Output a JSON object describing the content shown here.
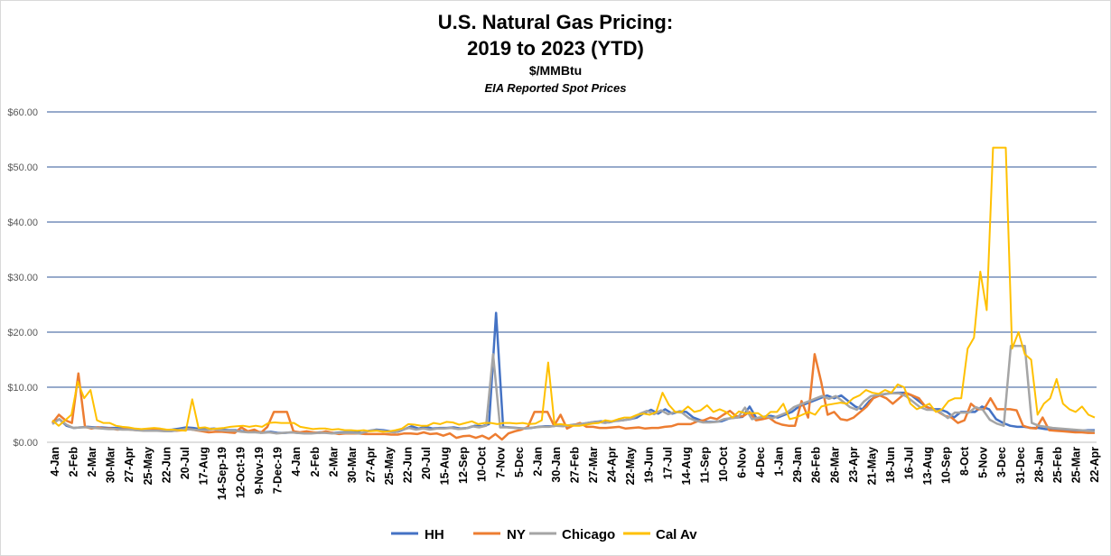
{
  "chart_data": {
    "type": "line",
    "title": "U.S. Natural Gas Pricing:",
    "title_line2": "2019 to 2023 (YTD)",
    "subtitle": "$/MMBtu",
    "subtitle2": "EIA Reported Spot Prices",
    "ylim": [
      0,
      60
    ],
    "yticks": [
      0,
      10,
      20,
      30,
      40,
      50,
      60
    ],
    "ytick_labels": [
      "$0.00",
      "$10.00",
      "$20.00",
      "$30.00",
      "$40.00",
      "$50.00",
      "$60.00"
    ],
    "grid": true,
    "legend_position": "bottom",
    "xtick_labels": [
      "4-Jan",
      "2-Feb",
      "2-Mar",
      "30-Mar",
      "27-Apr",
      "25-May",
      "22-Jun",
      "20-Jul",
      "17-Aug",
      "14-Sep-19",
      "12-Oct-19",
      "9-Nov-19",
      "7-Dec-19",
      "4-Jan",
      "2-Feb",
      "2-Mar",
      "30-Mar",
      "27-Apr",
      "25-May",
      "22-Jun",
      "20-Jul",
      "15-Aug",
      "12-Sep",
      "10-Oct",
      "7-Nov",
      "5-Dec",
      "2-Jan",
      "30-Jan",
      "27-Feb",
      "27-Mar",
      "24-Apr",
      "22-May",
      "19-Jun",
      "17-Jul",
      "14-Aug",
      "11-Sep",
      "10-Oct",
      "6-Nov",
      "4-Dec",
      "1-Jan",
      "29-Jan",
      "26-Feb",
      "26-Mar",
      "23-Apr",
      "21-May",
      "18-Jun",
      "16-Jul",
      "13-Aug",
      "10-Sep",
      "8-Oct",
      "5-Nov",
      "3-Dec",
      "31-Dec",
      "28-Jan",
      "25-Feb",
      "25-Mar",
      "22-Apr"
    ],
    "series": [
      {
        "name": "HH",
        "color": "#4472c4",
        "values": [
          3.5,
          4.2,
          3,
          2.6,
          2.7,
          2.8,
          2.7,
          2.7,
          2.6,
          2.6,
          2.5,
          2.5,
          2.3,
          2.2,
          2.3,
          2.3,
          2.2,
          2.3,
          2.5,
          2.7,
          2.6,
          2.4,
          2.4,
          2.5,
          2.3,
          2.2,
          2.2,
          2,
          1.9,
          1.9,
          1.8,
          1.9,
          1.7,
          1.7,
          1.8,
          1.7,
          1.7,
          1.7,
          1.8,
          1.8,
          1.7,
          1.8,
          1.8,
          1.8,
          1.7,
          2.1,
          2.3,
          2.2,
          2,
          1.9,
          2.4,
          2.9,
          2.5,
          2.8,
          2.5,
          2.6,
          2.6,
          2.7,
          2.5,
          2.6,
          3,
          2.9,
          3.3,
          23.5,
          2.8,
          2.7,
          2.6,
          2.5,
          2.6,
          2.8,
          2.9,
          2.9,
          3.1,
          3,
          3.2,
          3.3,
          3.5,
          3.7,
          3.8,
          3.6,
          3.9,
          4,
          4.2,
          4.5,
          5.3,
          5.9,
          5.2,
          6,
          5.2,
          5.6,
          5.5,
          4.5,
          4,
          3.7,
          3.7,
          3.8,
          4.3,
          4.5,
          4.6,
          6.5,
          4.3,
          4.6,
          4.8,
          4.5,
          5,
          5.5,
          6.5,
          7,
          7.5,
          8,
          8.5,
          8,
          8.5,
          7.5,
          6.5,
          6,
          7.5,
          8.5,
          8.7,
          8.9,
          9,
          9,
          8.5,
          7.5,
          6.5,
          6,
          6,
          5.5,
          4.5,
          5.5,
          5.5,
          5.5,
          6.5,
          6,
          4.2,
          3.5,
          3,
          2.8,
          2.8,
          2.6,
          2.6,
          2.4,
          2.3,
          2.2,
          2.1,
          2.2,
          2.1,
          2.2,
          2.2
        ]
      },
      {
        "name": "NY",
        "color": "#ed7d31",
        "values": [
          3.5,
          5,
          4,
          3.5,
          12.5,
          2.8,
          2.5,
          2.7,
          2.5,
          2.5,
          2.3,
          2.4,
          2.3,
          2.2,
          2.2,
          2.2,
          2.3,
          2.2,
          2.1,
          2.1,
          2.2,
          2.4,
          2.2,
          2,
          1.8,
          1.9,
          1.9,
          1.8,
          1.7,
          2.7,
          2,
          2.3,
          1.7,
          2.8,
          5.5,
          5.5,
          5.5,
          2,
          1.8,
          2,
          1.8,
          1.7,
          2,
          1.7,
          1.5,
          1.6,
          1.6,
          1.6,
          1.5,
          1.5,
          1.5,
          1.5,
          1.4,
          1.4,
          1.6,
          1.6,
          1.5,
          1.8,
          1.5,
          1.6,
          1.2,
          1.6,
          0.8,
          1.1,
          1.2,
          0.8,
          1.2,
          0.6,
          1.5,
          0.5,
          1.6,
          2,
          2.3,
          2.8,
          5.5,
          5.5,
          5.5,
          3,
          5,
          2.5,
          3.1,
          3.5,
          2.8,
          2.8,
          2.6,
          2.6,
          2.7,
          2.8,
          2.5,
          2.6,
          2.7,
          2.5,
          2.6,
          2.6,
          2.8,
          2.9,
          3.3,
          3.3,
          3.3,
          3.8,
          4,
          4.5,
          4.2,
          5,
          5.7,
          4.7,
          4.7,
          5.5,
          4,
          4.2,
          4.5,
          3.6,
          3.2,
          3,
          3,
          7.5,
          4.5,
          16,
          11,
          5,
          5.5,
          4.2,
          4,
          4.5,
          5.5,
          6.5,
          8,
          8.5,
          8,
          7,
          8,
          9,
          8.5,
          8,
          6.5,
          6,
          5.5,
          4.8,
          4.5,
          3.5,
          4,
          7,
          6,
          6,
          8,
          6,
          6,
          6,
          5.8,
          3,
          2.6,
          2.5,
          4.5,
          2.2,
          2.1,
          2,
          1.9,
          1.8,
          1.8,
          1.7,
          1.7
        ]
      },
      {
        "name": "Chicago",
        "color": "#a5a5a5",
        "values": [
          3.3,
          4.2,
          3.2,
          2.6,
          2.7,
          2.7,
          2.6,
          2.5,
          2.4,
          2.4,
          2.3,
          2.3,
          2.2,
          2.1,
          2.1,
          2.1,
          2,
          2,
          2.2,
          2.4,
          2.3,
          2.2,
          2.2,
          2.4,
          2.2,
          2.1,
          2.1,
          1.9,
          1.8,
          1.8,
          1.7,
          1.8,
          1.6,
          1.7,
          1.8,
          1.7,
          1.6,
          1.6,
          1.7,
          1.7,
          1.6,
          1.7,
          1.7,
          1.7,
          1.6,
          2,
          2.2,
          2.1,
          1.9,
          1.8,
          2.3,
          2.6,
          2.3,
          2.5,
          2.3,
          2.5,
          2.5,
          2.6,
          2.4,
          2.5,
          2.9,
          2.7,
          3,
          16,
          2.7,
          2.7,
          2.6,
          2.5,
          2.6,
          2.7,
          2.8,
          2.8,
          3,
          2.9,
          3.1,
          3.2,
          3.4,
          3.6,
          3.7,
          3.5,
          3.8,
          3.9,
          4.1,
          4.4,
          5.2,
          5.7,
          5.1,
          5.8,
          5.1,
          5.5,
          5.4,
          4.4,
          3.9,
          3.6,
          3.6,
          3.7,
          4.2,
          4.4,
          4.5,
          6.3,
          4.2,
          4.5,
          4.7,
          4.4,
          4.9,
          5.4,
          6.4,
          6.9,
          7.4,
          7.9,
          8.4,
          7.9,
          8.4,
          7.4,
          6.4,
          5.9,
          7.4,
          8.4,
          8.6,
          8.8,
          8.9,
          8.9,
          8.4,
          7.4,
          6.4,
          5.9,
          5.9,
          5.4,
          4.4,
          5.4,
          5.4,
          5.4,
          6.4,
          5.9,
          4.1,
          3.4,
          3,
          17.5,
          17.5,
          17.5,
          3.5,
          3,
          2.8,
          2.6,
          2.5,
          2.4,
          2.3,
          2.2,
          2.1,
          2
        ]
      },
      {
        "name": "Cal Av",
        "color": "#ffc000",
        "values": [
          4,
          3,
          4,
          5,
          11,
          8,
          9.5,
          4,
          3.5,
          3.5,
          3,
          2.8,
          2.7,
          2.5,
          2.4,
          2.5,
          2.6,
          2.5,
          2.3,
          2.3,
          2.2,
          2.1,
          7.8,
          2.6,
          2.7,
          2.4,
          2.5,
          2.6,
          2.8,
          2.9,
          3,
          2.8,
          3,
          2.8,
          3.5,
          3.6,
          3.5,
          3.5,
          3.5,
          2.8,
          2.6,
          2.4,
          2.5,
          2.5,
          2.3,
          2.4,
          2.2,
          2.2,
          2.1,
          2.2,
          2,
          2.1,
          1.9,
          2,
          2.2,
          2.5,
          3.3,
          3.2,
          3,
          3,
          3.5,
          3.3,
          3.7,
          3.6,
          3.2,
          3.5,
          3.8,
          3.3,
          3.5,
          3.5,
          3.3,
          3.5,
          3.5,
          3.4,
          3.5,
          3.3,
          3.4,
          4,
          14.5,
          3.2,
          3.3,
          3.1,
          3,
          3,
          3.2,
          3.4,
          3.5,
          4,
          3.8,
          4.2,
          4.5,
          4.5,
          5,
          5.2,
          5,
          5.5,
          9,
          6.8,
          5.5,
          5.5,
          6.5,
          5.5,
          5.8,
          6.7,
          5.5,
          6,
          5.5,
          4.5,
          5.6,
          5.3,
          5.3,
          5.3,
          4.5,
          5.5,
          5.5,
          7,
          4.2,
          4.5,
          5,
          5.5,
          5,
          6.5,
          6.8,
          7,
          7.2,
          7,
          8,
          8.5,
          9.5,
          9,
          8.8,
          9.5,
          9,
          10.5,
          10,
          7,
          6,
          6.5,
          7,
          5.5,
          6,
          7.5,
          8,
          8,
          17,
          19,
          31,
          24,
          53.5,
          53.5,
          53.5,
          17,
          20,
          16,
          15,
          5,
          7,
          8,
          11.5,
          7,
          6,
          5.5,
          6.5,
          5,
          4.5
        ]
      }
    ]
  },
  "legend": {
    "hh_label": "HH",
    "ny_label": "NY",
    "chicago_label": "Chicago",
    "calav_label": "Cal Av"
  }
}
